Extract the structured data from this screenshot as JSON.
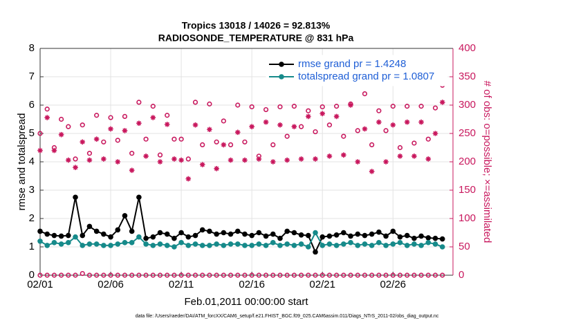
{
  "chart_data": {
    "type": "line",
    "title": "Tropics 13018 / 14026 = 92.813%",
    "subtitle": "RADIOSONDE_TEMPERATURE @ 831 hPa",
    "x_label": "Feb.01,2011 00:00:00 start",
    "y_label": "rmse and totalspread",
    "y2_label": "# of obs: o=possible; ×=assimilated",
    "footnote": "data file: /Users/raeder/DAI/ATM_forcXX/CAM6_setup/f.e21.FHIST_BGC.f09_025.CAM6assim.011/Diags_NTrS_2011-02/obs_diag_output.nc",
    "xlim": [
      0,
      29.25
    ],
    "xticks": [
      {
        "value": 0,
        "label": "02/01"
      },
      {
        "value": 5,
        "label": "02/06"
      },
      {
        "value": 10,
        "label": "02/11"
      },
      {
        "value": 15,
        "label": "02/16"
      },
      {
        "value": 20,
        "label": "02/21"
      },
      {
        "value": 25,
        "label": "02/26"
      }
    ],
    "ylim": [
      0,
      8
    ],
    "yticks": [
      0,
      1,
      2,
      3,
      4,
      5,
      6,
      7,
      8
    ],
    "y2lim": [
      0,
      400
    ],
    "y2ticks": [
      0,
      50,
      100,
      150,
      200,
      250,
      300,
      350,
      400
    ],
    "y2_color": "#c8175d",
    "grid": true,
    "legend": "upper right",
    "legend_text_color": "#1f5fd6",
    "x": [
      0,
      0.5,
      1,
      1.5,
      2,
      2.5,
      3,
      3.5,
      4,
      4.5,
      5,
      5.5,
      6,
      6.5,
      7,
      7.5,
      8,
      8.5,
      9,
      9.5,
      10,
      10.5,
      11,
      11.5,
      12,
      12.5,
      13,
      13.5,
      14,
      14.5,
      15,
      15.5,
      16,
      16.5,
      17,
      17.5,
      18,
      18.5,
      19,
      19.5,
      20,
      20.5,
      21,
      21.5,
      22,
      22.5,
      23,
      23.5,
      24,
      24.5,
      25,
      25.5,
      26,
      26.5,
      27,
      27.5,
      28,
      28.5
    ],
    "series": [
      {
        "name": "rmse grand pr = 1.4248",
        "color": "#000000",
        "marker": "line",
        "values": [
          1.55,
          1.45,
          1.4,
          1.38,
          1.4,
          2.75,
          1.4,
          1.72,
          1.55,
          1.45,
          1.35,
          1.6,
          2.1,
          1.55,
          2.75,
          1.3,
          1.35,
          1.5,
          1.45,
          1.3,
          1.5,
          1.35,
          1.4,
          1.6,
          1.55,
          1.45,
          1.5,
          1.45,
          1.55,
          1.45,
          1.4,
          1.5,
          1.38,
          1.45,
          1.3,
          1.55,
          1.5,
          1.42,
          1.4,
          0.82,
          1.35,
          1.38,
          1.42,
          1.5,
          1.38,
          1.45,
          1.4,
          1.45,
          1.52,
          1.38,
          1.55,
          1.35,
          1.4,
          1.3,
          1.38,
          1.32,
          1.3,
          1.28
        ]
      },
      {
        "name": "totalspread grand pr = 1.0807",
        "color": "#168a8a",
        "marker": "line",
        "values": [
          1.2,
          1.05,
          1.15,
          1.1,
          1.15,
          1.35,
          1.05,
          1.1,
          1.1,
          1.05,
          1.05,
          1.1,
          1.15,
          1.15,
          1.35,
          1.1,
          1.05,
          1.1,
          1.05,
          1.0,
          1.15,
          1.05,
          1.1,
          1.05,
          1.05,
          1.1,
          1.05,
          1.1,
          1.1,
          1.05,
          1.05,
          1.1,
          1.05,
          1.15,
          1.05,
          1.1,
          1.05,
          1.1,
          1.0,
          1.5,
          1.05,
          1.1,
          1.05,
          1.1,
          1.15,
          1.05,
          1.1,
          1.05,
          1.15,
          1.05,
          1.1,
          1.15,
          1.05,
          1.1,
          1.05,
          1.15,
          1.1,
          1.0
        ]
      },
      {
        "color": "#c8175d",
        "marker": "o",
        "axis": "y2",
        "values": [
          250,
          293,
          225,
          275,
          262,
          205,
          265,
          215,
          282,
          235,
          278,
          238,
          280,
          215,
          305,
          240,
          298,
          212,
          282,
          240,
          240,
          205,
          305,
          230,
          302,
          235,
          272,
          230,
          300,
          235,
          297,
          210,
          292,
          230,
          297,
          245,
          298,
          262,
          290,
          253,
          297,
          265,
          298,
          245,
          302,
          255,
          320,
          230,
          290,
          255,
          298,
          225,
          298,
          233,
          298,
          240,
          295,
          335
        ]
      },
      {
        "color": "#c8175d",
        "marker": "*",
        "axis": "y2",
        "values": [
          220,
          278,
          220,
          248,
          203,
          190,
          235,
          203,
          240,
          205,
          258,
          200,
          255,
          185,
          268,
          210,
          278,
          200,
          266,
          205,
          203,
          170,
          265,
          195,
          257,
          188,
          230,
          203,
          252,
          203,
          262,
          205,
          270,
          200,
          265,
          203,
          262,
          205,
          280,
          205,
          285,
          210,
          280,
          212,
          300,
          200,
          258,
          183,
          270,
          200,
          265,
          210,
          270,
          210,
          270,
          205,
          250,
          305
        ]
      },
      {
        "color": "#c8175d",
        "marker": "o",
        "axis": "y2",
        "values": [
          0,
          0,
          0,
          0,
          0,
          0,
          3,
          0,
          0,
          0,
          0,
          0,
          0,
          0,
          0,
          0,
          0,
          0,
          0,
          0,
          0,
          0,
          0,
          0,
          0,
          0,
          0,
          0,
          0,
          0,
          0,
          0,
          0,
          0,
          0,
          0,
          0,
          0,
          0,
          0,
          0,
          0,
          0,
          0,
          0,
          0,
          0,
          0,
          0,
          0,
          0,
          0,
          0,
          0,
          0,
          0,
          0,
          0
        ]
      }
    ]
  }
}
